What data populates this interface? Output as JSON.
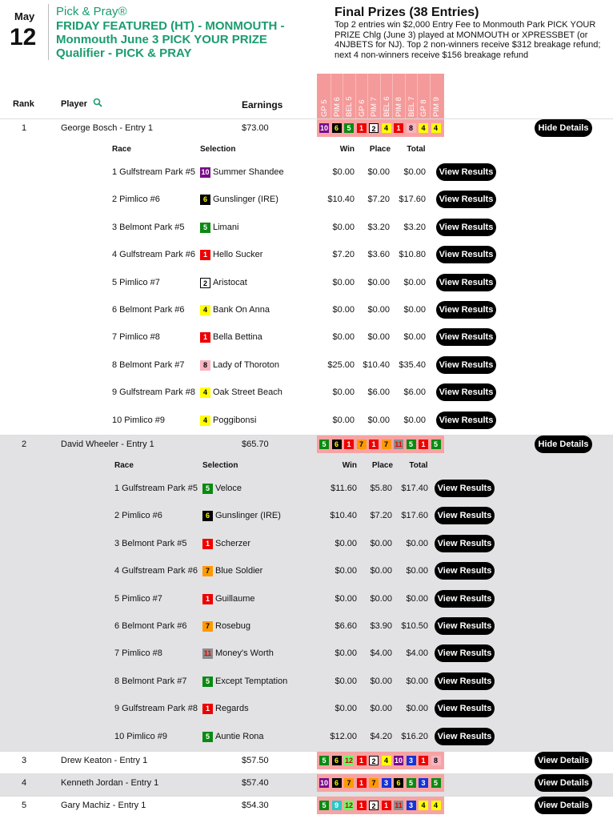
{
  "header": {
    "month": "May",
    "day": "12",
    "brand": "Pick & Pray®",
    "title": "FRIDAY FEATURED (HT) - MONMOUTH - Monmouth June 3 PICK YOUR PRIZE Qualifier - PICK & PRAY",
    "prizes_title": "Final Prizes (38 Entries)",
    "prizes_text": "Top 2 entries win $2,000 Entry Fee to Monmouth Park PICK YOUR PRIZE Chlg (June 3) played at MONMOUTH or XPRESSBET (or 4NJBETS for NJ). Top 2 non-winners receive $312 breakage refund; next 4 non-winners receive $156 breakage refund"
  },
  "columns": {
    "rank": "Rank",
    "player": "Player",
    "earnings": "Earnings",
    "races": [
      "GP 5",
      "PIM 6",
      "BEL 5",
      "GP 6",
      "PIM 7",
      "BEL 6",
      "PIM 8",
      "BEL 7",
      "GP 8",
      "PIM 9"
    ]
  },
  "detail_columns": {
    "race": "Race",
    "selection": "Selection",
    "win": "Win",
    "place": "Place",
    "total": "Total"
  },
  "buttons": {
    "hide": "Hide Details",
    "view": "View Details",
    "results": "View Results"
  },
  "entries": [
    {
      "rank": 1,
      "player": "George Bosch - Entry 1",
      "earnings": "$73.00",
      "picks": [
        10,
        6,
        5,
        1,
        2,
        4,
        1,
        8,
        4,
        4
      ],
      "details": [
        {
          "race": "1 Gulfstream Park #5",
          "number": 10,
          "horse": "Summer Shandee",
          "win": "$0.00",
          "place": "$0.00",
          "total": "$0.00"
        },
        {
          "race": "2 Pimlico #6",
          "number": 6,
          "horse": "Gunslinger (IRE)",
          "win": "$10.40",
          "place": "$7.20",
          "total": "$17.60"
        },
        {
          "race": "3 Belmont Park #5",
          "number": 5,
          "horse": "Limani",
          "win": "$0.00",
          "place": "$3.20",
          "total": "$3.20"
        },
        {
          "race": "4 Gulfstream Park #6",
          "number": 1,
          "horse": "Hello Sucker",
          "win": "$7.20",
          "place": "$3.60",
          "total": "$10.80"
        },
        {
          "race": "5 Pimlico #7",
          "number": 2,
          "horse": "Aristocat",
          "win": "$0.00",
          "place": "$0.00",
          "total": "$0.00"
        },
        {
          "race": "6 Belmont Park #6",
          "number": 4,
          "horse": "Bank On Anna",
          "win": "$0.00",
          "place": "$0.00",
          "total": "$0.00"
        },
        {
          "race": "7 Pimlico #8",
          "number": 1,
          "horse": "Bella Bettina",
          "win": "$0.00",
          "place": "$0.00",
          "total": "$0.00"
        },
        {
          "race": "8 Belmont Park #7",
          "number": 8,
          "horse": "Lady of Thoroton",
          "win": "$25.00",
          "place": "$10.40",
          "total": "$35.40"
        },
        {
          "race": "9 Gulfstream Park #8",
          "number": 4,
          "horse": "Oak Street Beach",
          "win": "$0.00",
          "place": "$6.00",
          "total": "$6.00"
        },
        {
          "race": "10 Pimlico #9",
          "number": 4,
          "horse": "Poggibonsi",
          "win": "$0.00",
          "place": "$0.00",
          "total": "$0.00"
        }
      ]
    },
    {
      "rank": 2,
      "player": "David Wheeler - Entry 1",
      "earnings": "$65.70",
      "picks": [
        5,
        6,
        1,
        7,
        1,
        7,
        11,
        5,
        1,
        5
      ],
      "details": [
        {
          "race": "1 Gulfstream Park #5",
          "number": 5,
          "horse": "Veloce",
          "win": "$11.60",
          "place": "$5.80",
          "total": "$17.40"
        },
        {
          "race": "2 Pimlico #6",
          "number": 6,
          "horse": "Gunslinger (IRE)",
          "win": "$10.40",
          "place": "$7.20",
          "total": "$17.60"
        },
        {
          "race": "3 Belmont Park #5",
          "number": 1,
          "horse": "Scherzer",
          "win": "$0.00",
          "place": "$0.00",
          "total": "$0.00"
        },
        {
          "race": "4 Gulfstream Park #6",
          "number": 7,
          "horse": "Blue Soldier",
          "win": "$0.00",
          "place": "$0.00",
          "total": "$0.00"
        },
        {
          "race": "5 Pimlico #7",
          "number": 1,
          "horse": "Guillaume",
          "win": "$0.00",
          "place": "$0.00",
          "total": "$0.00"
        },
        {
          "race": "6 Belmont Park #6",
          "number": 7,
          "horse": "Rosebug",
          "win": "$6.60",
          "place": "$3.90",
          "total": "$10.50"
        },
        {
          "race": "7 Pimlico #8",
          "number": 11,
          "horse": "Money's Worth",
          "win": "$0.00",
          "place": "$4.00",
          "total": "$4.00"
        },
        {
          "race": "8 Belmont Park #7",
          "number": 5,
          "horse": "Except Temptation",
          "win": "$0.00",
          "place": "$0.00",
          "total": "$0.00"
        },
        {
          "race": "9 Gulfstream Park #8",
          "number": 1,
          "horse": "Regards",
          "win": "$0.00",
          "place": "$0.00",
          "total": "$0.00"
        },
        {
          "race": "10 Pimlico #9",
          "number": 5,
          "horse": "Auntie Rona",
          "win": "$12.00",
          "place": "$4.20",
          "total": "$16.20"
        }
      ]
    },
    {
      "rank": 3,
      "player": "Drew Keaton - Entry 1",
      "earnings": "$57.50",
      "picks": [
        5,
        6,
        12,
        1,
        2,
        4,
        10,
        3,
        1,
        8
      ]
    },
    {
      "rank": 4,
      "player": "Kenneth Jordan - Entry 1",
      "earnings": "$57.40",
      "picks": [
        10,
        6,
        7,
        1,
        7,
        3,
        6,
        5,
        3,
        5
      ]
    },
    {
      "rank": 5,
      "player": "Gary Machiz - Entry 1",
      "earnings": "$54.30",
      "picks": [
        5,
        9,
        12,
        1,
        2,
        1,
        11,
        3,
        4,
        4
      ]
    }
  ]
}
